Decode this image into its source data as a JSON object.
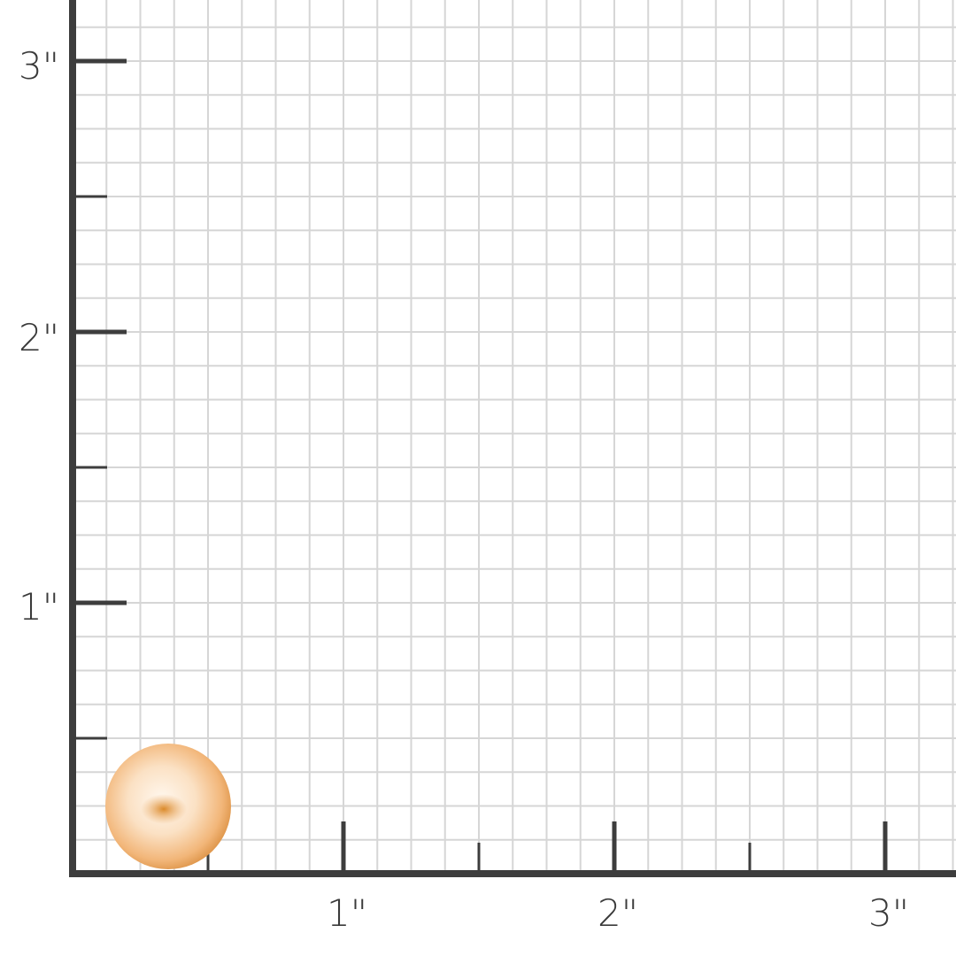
{
  "scale": {
    "unit": "inch",
    "x_labels": [
      "1\"",
      "2\"",
      "3\""
    ],
    "y_labels": [
      "1\"",
      "2\"",
      "3\""
    ],
    "grid_subdivisions_per_inch": 8
  },
  "item": {
    "name": "pearl",
    "diameter_in": 0.47,
    "color": "#f2b77a"
  },
  "colors": {
    "axis": "#3d3d3d",
    "grid": "#d6d6d6",
    "background": "#ffffff"
  }
}
